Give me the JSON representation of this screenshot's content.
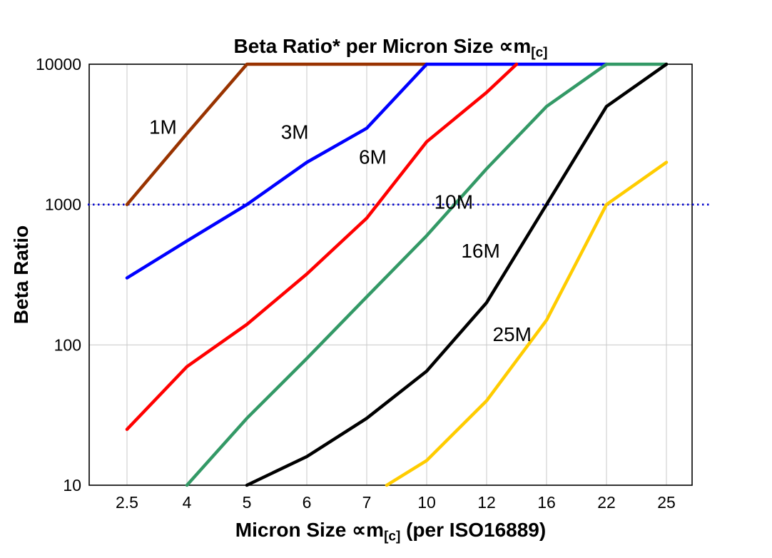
{
  "page": {
    "background": "#FFFFFF"
  },
  "chart_data": {
    "type": "line",
    "title": {
      "main": "Beta Ratio* per Micron Size ",
      "symbol": "∝m",
      "subscript": "[c]"
    },
    "xlabel": {
      "pre": "Micron Size ",
      "symbol": "∝m",
      "subscript": "[c]",
      "post": " (per ISO16889)"
    },
    "ylabel": "Beta Ratio",
    "x_categories": [
      2.5,
      4,
      5,
      6,
      7,
      10,
      12,
      16,
      22,
      25
    ],
    "y_ticks": [
      10,
      100,
      1000,
      10000
    ],
    "y_scale": "log",
    "ylim": [
      10,
      10000
    ],
    "grid": true,
    "gridline_color": "#C8C8C8",
    "frame_color": "#000000",
    "reference_line": {
      "value": 1000,
      "color": "#0000CC",
      "style": "dotted"
    },
    "series": [
      {
        "name": "1M",
        "color": "#993300",
        "label": {
          "micron": 3.4,
          "beta": 3600
        },
        "points": [
          [
            2.5,
            1000
          ],
          [
            4,
            3200
          ],
          [
            5,
            10000
          ],
          [
            10,
            10000
          ]
        ]
      },
      {
        "name": "3M",
        "color": "#0000FF",
        "label": {
          "micron": 5.8,
          "beta": 3300
        },
        "points": [
          [
            2.5,
            300
          ],
          [
            4,
            550
          ],
          [
            5,
            1000
          ],
          [
            6,
            2000
          ],
          [
            7,
            3500
          ],
          [
            10,
            10000
          ],
          [
            22,
            10000
          ]
        ]
      },
      {
        "name": "6M",
        "color": "#FF0000",
        "label": {
          "micron": 7.3,
          "beta": 2200
        },
        "points": [
          [
            2.5,
            25
          ],
          [
            4,
            70
          ],
          [
            5,
            140
          ],
          [
            6,
            320
          ],
          [
            7,
            800
          ],
          [
            10,
            2800
          ],
          [
            12,
            6300
          ],
          [
            14,
            10000
          ]
        ]
      },
      {
        "name": "10M",
        "color": "#339966",
        "label": {
          "micron": 10.9,
          "beta": 1050
        },
        "points": [
          [
            4,
            10
          ],
          [
            5,
            30
          ],
          [
            6,
            80
          ],
          [
            7,
            220
          ],
          [
            10,
            600
          ],
          [
            12,
            1800
          ],
          [
            16,
            5000
          ],
          [
            22,
            10000
          ],
          [
            25,
            10000
          ]
        ]
      },
      {
        "name": "16M",
        "color": "#000000",
        "label": {
          "micron": 11.8,
          "beta": 470
        },
        "points": [
          [
            5,
            10
          ],
          [
            6,
            16
          ],
          [
            7,
            30
          ],
          [
            10,
            65
          ],
          [
            12,
            200
          ],
          [
            16,
            1000
          ],
          [
            22,
            5000
          ],
          [
            25,
            10000
          ]
        ]
      },
      {
        "name": "25M",
        "color": "#FFCC00",
        "label": {
          "micron": 13.7,
          "beta": 120
        },
        "points": [
          [
            8,
            10
          ],
          [
            10,
            15
          ],
          [
            12,
            40
          ],
          [
            16,
            150
          ],
          [
            22,
            1000
          ],
          [
            25,
            2000
          ]
        ]
      }
    ]
  }
}
